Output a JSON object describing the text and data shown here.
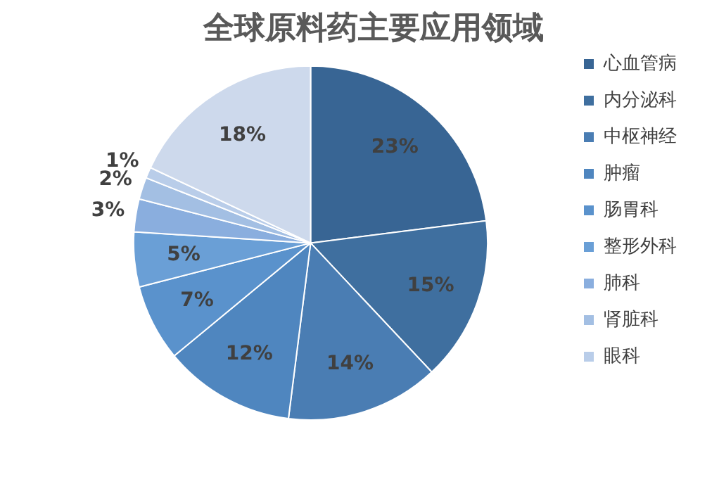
{
  "chart_data": {
    "type": "pie",
    "title": "全球原料药主要应用领域",
    "categories": [
      "心血管病",
      "内分泌科",
      "中枢神经",
      "肿瘤",
      "肠胃科",
      "整形外科",
      "肺科",
      "肾脏科",
      "眼科",
      null
    ],
    "values": [
      23,
      15,
      14,
      12,
      7,
      5,
      3,
      2,
      1,
      18
    ],
    "value_labels": [
      "23%",
      "15%",
      "14%",
      "12%",
      "7%",
      "5%",
      "3%",
      "2%",
      "1%",
      "18%"
    ],
    "colors": [
      "#386594",
      "#3f6f9f",
      "#4a7db3",
      "#4f86bf",
      "#5a92cc",
      "#6a9fd6",
      "#8aaede",
      "#a3bfe3",
      "#b9cde9",
      "#cdd9ec"
    ],
    "legend": "right"
  }
}
